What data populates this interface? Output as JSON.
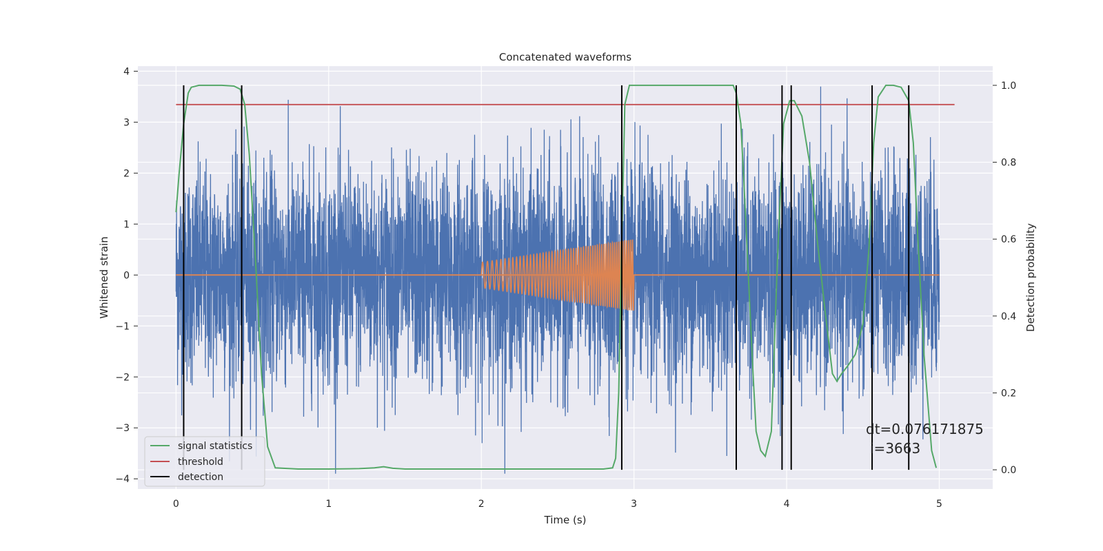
{
  "chart_data": {
    "type": "line",
    "title": "Concatenated waveforms",
    "xlabel": "Time (s)",
    "ylabel": "Whitened strain",
    "y2label": "Detection probability",
    "xlim": [
      -0.25,
      5.35
    ],
    "ylim": [
      -4.2,
      4.1
    ],
    "y2lim": [
      -0.05,
      1.05
    ],
    "xticks": [
      0,
      1,
      2,
      3,
      4,
      5
    ],
    "yticks": [
      -4,
      -3,
      -2,
      -1,
      0,
      1,
      2,
      3,
      4
    ],
    "y2ticks": [
      0.0,
      0.2,
      0.4,
      0.6,
      0.8,
      1.0
    ],
    "y2tick_labels": [
      "0.0",
      "0.2",
      "0.4",
      "0.6",
      "0.8",
      "1.0"
    ],
    "grid": true,
    "legend_position": "bottom-left",
    "annotation": [
      "dt=0.076171875",
      "i=3663"
    ],
    "colors": {
      "noise": "#4c72b0",
      "injection": "#dd8452",
      "signal_statistics": "#55a868",
      "threshold": "#c44e52",
      "detection": "#000000",
      "background": "#eaeaf2",
      "grid": "#ffffff"
    },
    "series": [
      {
        "name": "",
        "key": "noise",
        "axis": "left",
        "x_range": [
          0,
          5
        ],
        "y_approx_range": [
          -3.9,
          3.7
        ]
      },
      {
        "name": "",
        "key": "injection",
        "axis": "left",
        "x_range": [
          2.0,
          3.0
        ],
        "amplitude_start": 0.25,
        "amplitude_end": 0.7,
        "baseline": 0
      },
      {
        "name": "signal statistics",
        "key": "signal_statistics",
        "axis": "right",
        "x": [
          0.0,
          0.02,
          0.05,
          0.08,
          0.1,
          0.15,
          0.2,
          0.3,
          0.38,
          0.42,
          0.45,
          0.48,
          0.52,
          0.56,
          0.6,
          0.65,
          0.8,
          1.0,
          1.2,
          1.3,
          1.36,
          1.42,
          1.5,
          1.8,
          2.0,
          2.2,
          2.5,
          2.8,
          2.86,
          2.88,
          2.9,
          2.92,
          2.94,
          2.97,
          3.0,
          3.2,
          3.5,
          3.65,
          3.67,
          3.7,
          3.72,
          3.75,
          3.78,
          3.8,
          3.83,
          3.86,
          3.9,
          3.94,
          3.98,
          4.02,
          4.05,
          4.1,
          4.15,
          4.2,
          4.25,
          4.3,
          4.33,
          4.36,
          4.4,
          4.45,
          4.5,
          4.54,
          4.57,
          4.6,
          4.65,
          4.7,
          4.75,
          4.8,
          4.83,
          4.86,
          4.9,
          4.95,
          4.98
        ],
        "values": [
          0.67,
          0.77,
          0.9,
          0.98,
          0.995,
          1.0,
          1.0,
          1.0,
          0.998,
          0.99,
          0.95,
          0.82,
          0.55,
          0.25,
          0.06,
          0.005,
          0.002,
          0.002,
          0.003,
          0.005,
          0.008,
          0.004,
          0.002,
          0.002,
          0.002,
          0.002,
          0.002,
          0.002,
          0.005,
          0.03,
          0.2,
          0.6,
          0.95,
          1.0,
          1.0,
          1.0,
          1.0,
          1.0,
          0.98,
          0.9,
          0.75,
          0.5,
          0.25,
          0.1,
          0.05,
          0.035,
          0.1,
          0.55,
          0.9,
          0.96,
          0.96,
          0.92,
          0.8,
          0.6,
          0.42,
          0.25,
          0.23,
          0.25,
          0.27,
          0.3,
          0.38,
          0.58,
          0.85,
          0.97,
          1.0,
          1.0,
          0.995,
          0.96,
          0.85,
          0.6,
          0.3,
          0.05,
          0.005
        ]
      },
      {
        "name": "threshold",
        "key": "threshold",
        "axis": "right",
        "x": [
          0,
          5.1
        ],
        "values": [
          0.95,
          0.95
        ]
      },
      {
        "name": "detection",
        "key": "detection",
        "axis": "right",
        "type": "vlines",
        "x": [
          0.05,
          0.43,
          2.92,
          3.67,
          3.97,
          4.03,
          4.56,
          4.8
        ],
        "y_range": [
          0.0,
          1.0
        ]
      }
    ],
    "legend": [
      "signal statistics",
      "threshold",
      "detection"
    ]
  }
}
